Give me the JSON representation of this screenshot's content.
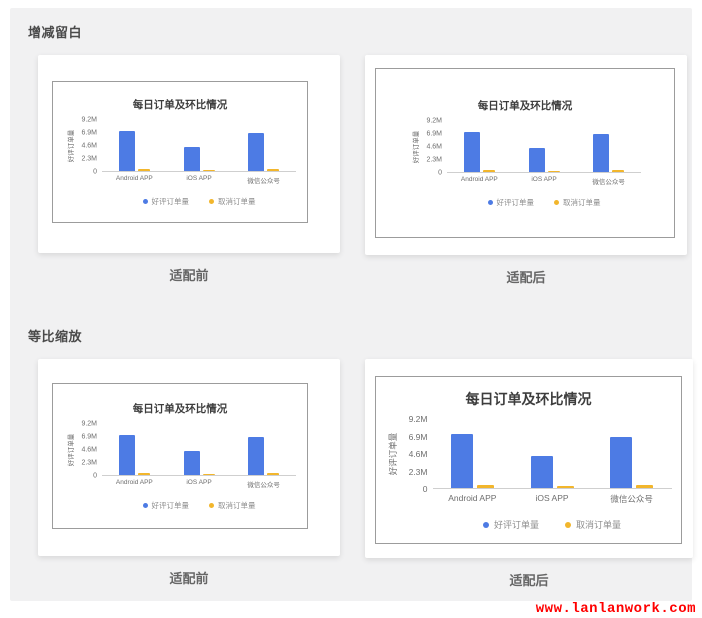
{
  "page": {
    "watermark": "www.lanlanwork.com",
    "panel_bg": "#f1f1f2",
    "accent_red": "#ff0000"
  },
  "sections": [
    {
      "heading": "增减留白",
      "cards": [
        {
          "caption": "适配前"
        },
        {
          "caption": "适配后"
        }
      ]
    },
    {
      "heading": "等比缩放",
      "cards": [
        {
          "caption": "适配前"
        },
        {
          "caption": "适配后"
        }
      ]
    }
  ],
  "chart_data": {
    "type": "bar",
    "title": "每日订单及环比情况",
    "xlabel": "",
    "ylabel": "好评订单量",
    "categories": [
      "Android APP",
      "iOS APP",
      "微信公众号"
    ],
    "series": [
      {
        "name": "好评订单量",
        "color": "#4d7be4",
        "values": [
          7.2,
          4.3,
          6.8
        ]
      },
      {
        "name": "取消订单量",
        "color": "#f2b62c",
        "values": [
          0.45,
          0.25,
          0.45
        ]
      }
    ],
    "unit": "M",
    "yticks": [
      "9.2M",
      "6.9M",
      "4.6M",
      "2.3M",
      "0"
    ],
    "ylim": [
      0,
      9.2
    ],
    "grid": false,
    "legend_position": "bottom"
  }
}
